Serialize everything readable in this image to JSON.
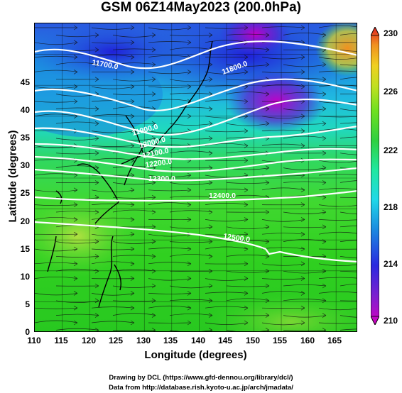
{
  "title": "GSM 06Z14May2023 (200.0hPa)",
  "axes": {
    "xlabel": "Longitude (degrees)",
    "ylabel": "Latitude (degrees)",
    "xticks": [
      "110",
      "115",
      "120",
      "125",
      "130",
      "135",
      "140",
      "145",
      "150",
      "155",
      "160",
      "165"
    ],
    "yticks": [
      "0",
      "5",
      "10",
      "15",
      "20",
      "25",
      "30",
      "35",
      "40",
      "45"
    ],
    "xlim": [
      110,
      169
    ],
    "ylim": [
      0,
      50
    ]
  },
  "colorbar": {
    "ticks": [
      "210",
      "214",
      "218",
      "222",
      "226",
      "230"
    ],
    "range": [
      210,
      230
    ],
    "colors": [
      "#d400c0",
      "#7a20d0",
      "#2a2ae0",
      "#1c8ae0",
      "#20d8e8",
      "#20e8a0",
      "#30d040",
      "#70e020",
      "#c0e020",
      "#f0d020",
      "#f09020",
      "#e02020"
    ]
  },
  "contours": [
    {
      "label": "11700.0"
    },
    {
      "label": "11800.0"
    },
    {
      "label": "11900.0"
    },
    {
      "label": "12000.0"
    },
    {
      "label": "12100.0"
    },
    {
      "label": "12200.0"
    },
    {
      "label": "12300.0"
    },
    {
      "label": "12400.0"
    },
    {
      "label": "12500.0"
    }
  ],
  "credits": {
    "line1": "Drawing by DCL (https://www.gfd-dennou.org/library/dcl/)",
    "line2": "Data from http://database.rish.kyoto-u.ac.jp/arch/jmadata/"
  }
}
